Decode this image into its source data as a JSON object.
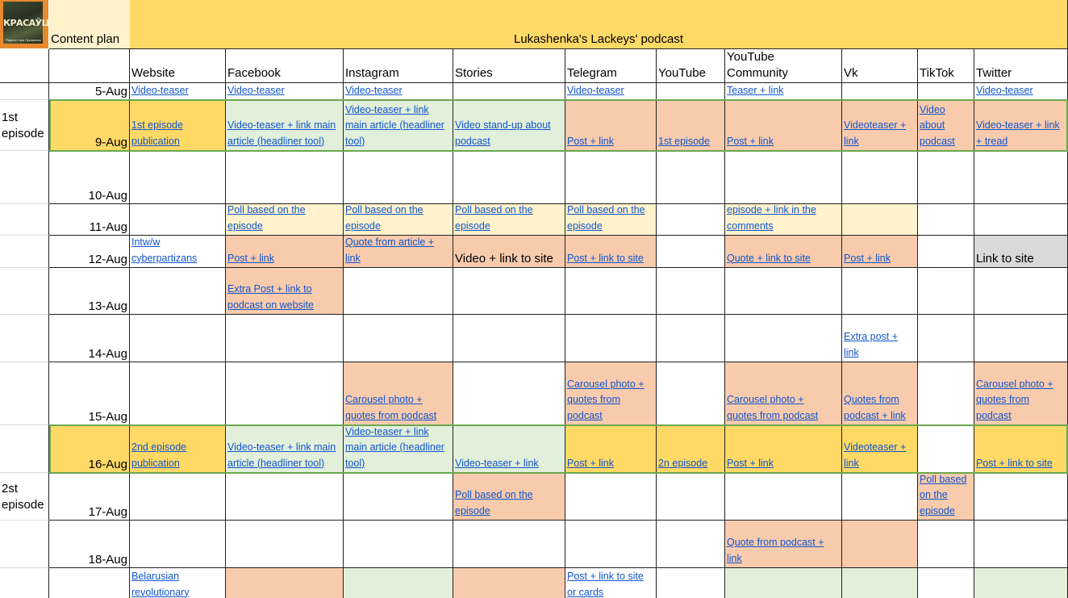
{
  "sheet": {
    "logo_text": "КРАСАЎЦЫ",
    "logo_subtext": "Падкаст пра Лукашэнку",
    "title_left": "Content plan",
    "title_center": "Lukashenka's Lackeys' podcast",
    "columns": [
      "Website",
      "Facebook",
      "Instagram",
      "Stories",
      "Telegram",
      "YouTube",
      "YouTube\nCommunity",
      "Vk",
      "TikTok",
      "Twitter"
    ],
    "episodes": [
      {
        "label": "1st\nepisode",
        "row": 1
      },
      {
        "label": "2st\nepisode",
        "row": 9
      }
    ],
    "colors": {
      "yellow": "#ffd966",
      "green": "#e2efda",
      "peach": "#f8cbad",
      "cream": "#fff2cc",
      "gray": "#d9d9d9",
      "header_yellow": "#ffd966",
      "header_light": "#fff2cc",
      "highlight_border": "#6aa84f",
      "link": "#1155cc"
    },
    "rows": [
      {
        "date": "5-Aug",
        "cells": [
          {
            "text": "Video-teaser",
            "type": "link"
          },
          {
            "text": "Video-teaser",
            "type": "link"
          },
          {
            "text": "Video-teaser",
            "type": "link"
          },
          {
            "text": ""
          },
          {
            "text": "Video-teaser",
            "type": "link"
          },
          {
            "text": ""
          },
          {
            "text": "Teaser + link",
            "type": "link"
          },
          {
            "text": ""
          },
          {
            "text": ""
          },
          {
            "text": "Video-teaser",
            "type": "link"
          }
        ]
      },
      {
        "date": "9-Aug",
        "bg": "yellow",
        "cells": [
          {
            "text": "1st episode\npublication",
            "type": "link",
            "bg": "yellow"
          },
          {
            "text": "Video-teaser + link main\narticle (headliner tool)",
            "type": "link",
            "bg": "green"
          },
          {
            "text": "Video-teaser + link\nmain article (headliner\ntool)",
            "type": "link",
            "bg": "green"
          },
          {
            "text": "Video stand-up about\npodcast",
            "type": "link",
            "bg": "green"
          },
          {
            "text": "Post + link",
            "type": "link",
            "bg": "peach"
          },
          {
            "text": "1st episode",
            "type": "link",
            "bg": "peach"
          },
          {
            "text": "Post + link",
            "type": "link",
            "bg": "peach"
          },
          {
            "text": "Videoteaser +\nlink",
            "type": "link",
            "bg": "peach"
          },
          {
            "text": "Video\nabout\npodcast",
            "type": "link",
            "bg": "peach"
          },
          {
            "text": "Video-teaser + link\n+ tread",
            "type": "link",
            "bg": "peach"
          }
        ]
      },
      {
        "date": "10-Aug",
        "cells": [
          {
            "text": ""
          },
          {
            "text": ""
          },
          {
            "text": ""
          },
          {
            "text": ""
          },
          {
            "text": ""
          },
          {
            "text": ""
          },
          {
            "text": ""
          },
          {
            "text": ""
          },
          {
            "text": ""
          },
          {
            "text": ""
          }
        ]
      },
      {
        "date": "11-Aug",
        "cells": [
          {
            "text": ""
          },
          {
            "text": "Poll based on the\nepisode",
            "type": "link",
            "bg": "cream"
          },
          {
            "text": "Poll based on the\nepisode",
            "type": "link",
            "bg": "cream"
          },
          {
            "text": "Poll based on the\nepisode",
            "type": "link",
            "bg": "cream"
          },
          {
            "text": "Poll based on the\nepisode",
            "type": "link",
            "bg": "cream"
          },
          {
            "text": ""
          },
          {
            "text": "episode + link in the\ncomments",
            "type": "link",
            "bg": "cream"
          },
          {
            "text": "",
            "bg": "cream"
          },
          {
            "text": ""
          },
          {
            "text": ""
          }
        ]
      },
      {
        "date": "12-Aug",
        "cells": [
          {
            "text": "Intw/w\ncyberpartizans",
            "type": "link"
          },
          {
            "text": "Post + link",
            "type": "link",
            "bg": "peach"
          },
          {
            "text": "Quote from article +\nlink",
            "type": "link",
            "bg": "peach"
          },
          {
            "text": "Video + link to site",
            "type": "plain",
            "bg": "peach"
          },
          {
            "text": "Post + link to site",
            "type": "link",
            "bg": "peach"
          },
          {
            "text": ""
          },
          {
            "text": "Quote + link to site",
            "type": "link",
            "bg": "peach"
          },
          {
            "text": "Post + link",
            "type": "link",
            "bg": "peach"
          },
          {
            "text": ""
          },
          {
            "text": "Link to site",
            "type": "plain",
            "bg": "gray"
          }
        ]
      },
      {
        "date": "13-Aug",
        "cells": [
          {
            "text": ""
          },
          {
            "text": "Extra Post + link to\npodcast on website",
            "type": "link",
            "bg": "peach"
          },
          {
            "text": ""
          },
          {
            "text": ""
          },
          {
            "text": ""
          },
          {
            "text": ""
          },
          {
            "text": ""
          },
          {
            "text": ""
          },
          {
            "text": ""
          },
          {
            "text": ""
          }
        ]
      },
      {
        "date": "14-Aug",
        "cells": [
          {
            "text": ""
          },
          {
            "text": ""
          },
          {
            "text": ""
          },
          {
            "text": ""
          },
          {
            "text": ""
          },
          {
            "text": ""
          },
          {
            "text": ""
          },
          {
            "text": "Extra post +\nlink",
            "type": "link"
          },
          {
            "text": ""
          },
          {
            "text": ""
          }
        ]
      },
      {
        "date": "15-Aug",
        "cells": [
          {
            "text": ""
          },
          {
            "text": ""
          },
          {
            "text": "Carousel photo +\nquotes from podcast",
            "type": "link",
            "bg": "peach"
          },
          {
            "text": ""
          },
          {
            "text": "Carousel photo +\nquotes from\npodcast",
            "type": "link",
            "bg": "peach"
          },
          {
            "text": ""
          },
          {
            "text": "Carousel photo +\nquotes from podcast",
            "type": "link",
            "bg": "peach"
          },
          {
            "text": "Quotes from\npodcast + link",
            "type": "link",
            "bg": "peach"
          },
          {
            "text": ""
          },
          {
            "text": "Carousel photo +\nquotes from\npodcast",
            "type": "link",
            "bg": "peach"
          }
        ]
      },
      {
        "date": "16-Aug",
        "bg": "yellow",
        "cells": [
          {
            "text": "2nd episode\npublication",
            "type": "link",
            "bg": "yellow"
          },
          {
            "text": "Video-teaser + link main\narticle (headliner tool)",
            "type": "link",
            "bg": "green"
          },
          {
            "text": "Video-teaser + link\nmain article (headliner\ntool)",
            "type": "link",
            "bg": "green"
          },
          {
            "text": "Video-teaser + link",
            "type": "link",
            "bg": "green"
          },
          {
            "text": "Post + link",
            "type": "link",
            "bg": "yellow"
          },
          {
            "text": "2n episode",
            "type": "link",
            "bg": "yellow"
          },
          {
            "text": "Post + link",
            "type": "link",
            "bg": "yellow"
          },
          {
            "text": "Videoteaser +\nlink",
            "type": "link",
            "bg": "yellow"
          },
          {
            "text": "",
            "bg": "white"
          },
          {
            "text": "Post + link to site",
            "type": "link",
            "bg": "yellow"
          }
        ]
      },
      {
        "date": "17-Aug",
        "cells": [
          {
            "text": ""
          },
          {
            "text": ""
          },
          {
            "text": ""
          },
          {
            "text": "Poll based on the\nepisode",
            "type": "link",
            "bg": "peach"
          },
          {
            "text": ""
          },
          {
            "text": ""
          },
          {
            "text": ""
          },
          {
            "text": ""
          },
          {
            "text": "Poll based\non the\nepisode",
            "type": "link",
            "bg": "peach"
          },
          {
            "text": ""
          }
        ]
      },
      {
        "date": "18-Aug",
        "cells": [
          {
            "text": ""
          },
          {
            "text": ""
          },
          {
            "text": ""
          },
          {
            "text": ""
          },
          {
            "text": ""
          },
          {
            "text": ""
          },
          {
            "text": "Quote from podcast +\nlink",
            "type": "link",
            "bg": "peach"
          },
          {
            "text": "",
            "bg": "peach"
          },
          {
            "text": ""
          },
          {
            "text": ""
          }
        ]
      },
      {
        "date": "",
        "top_align": true,
        "cells": [
          {
            "text": "Belarusian\nrevolutionary",
            "type": "link"
          },
          {
            "text": "",
            "bg": "peach"
          },
          {
            "text": "",
            "bg": "green"
          },
          {
            "text": "",
            "bg": "peach"
          },
          {
            "text": "Post + link to site\nor cards",
            "type": "link"
          },
          {
            "text": ""
          },
          {
            "text": "",
            "bg": "green"
          },
          {
            "text": "",
            "bg": "green"
          },
          {
            "text": ""
          },
          {
            "text": "",
            "bg": "green"
          }
        ]
      }
    ]
  }
}
